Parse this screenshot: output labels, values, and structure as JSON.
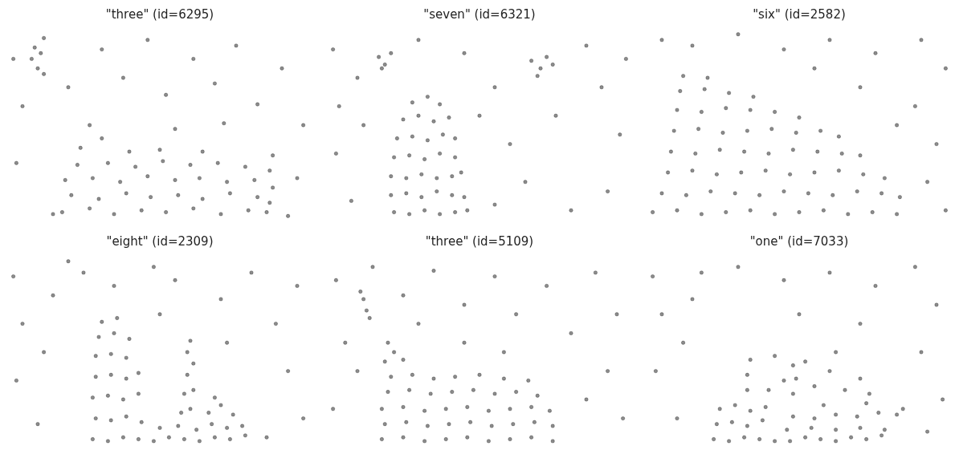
{
  "chart_data": [
    {
      "type": "scatter",
      "title": "\"three\" (id=6295)",
      "xlim": [
        0,
        100
      ],
      "ylim": [
        0,
        100
      ],
      "tick_labels": false,
      "grid": false,
      "color": "#000000",
      "x": [
        2,
        5,
        3,
        12,
        20,
        31,
        38,
        46,
        52,
        61,
        68,
        75,
        82,
        90,
        97,
        95,
        55,
        71,
        15,
        92,
        8,
        10,
        11,
        12,
        9,
        18,
        27,
        35,
        44,
        52,
        61,
        70,
        79,
        85,
        21,
        30,
        39,
        47,
        56,
        64,
        73,
        82,
        19,
        28,
        37,
        46,
        55,
        63,
        72,
        81,
        23,
        33,
        42,
        51,
        60,
        69,
        78,
        24,
        31,
        40,
        27,
        50,
        64,
        86,
        87,
        86,
        87
      ],
      "values": [
        85,
        60,
        30,
        96,
        70,
        90,
        75,
        95,
        66,
        85,
        72,
        92,
        61,
        80,
        50,
        22,
        48,
        51,
        3,
        2,
        85,
        80,
        88,
        77,
        91,
        4,
        6,
        3,
        5,
        4,
        6,
        3,
        5,
        4,
        13,
        11,
        14,
        12,
        13,
        11,
        14,
        12,
        21,
        22,
        20,
        23,
        21,
        22,
        20,
        21,
        29,
        30,
        28,
        31,
        29,
        30,
        28,
        38,
        43,
        36,
        50,
        37,
        36,
        9,
        17,
        26,
        34
      ]
    },
    {
      "type": "scatter",
      "title": "\"seven\" (id=6321)",
      "xlim": [
        0,
        100
      ],
      "ylim": [
        0,
        100
      ],
      "tick_labels": false,
      "grid": false,
      "color": "#000000",
      "x": [
        2,
        4,
        3,
        8,
        12,
        10,
        30,
        45,
        55,
        60,
        65,
        75,
        85,
        90,
        96,
        92,
        80,
        55,
        50,
        98,
        17,
        19,
        21,
        18,
        67,
        70,
        72,
        69,
        74,
        22,
        27,
        32,
        37,
        42,
        46,
        21,
        26,
        31,
        36,
        41,
        45,
        21,
        26,
        31,
        36,
        41,
        44,
        22,
        27,
        32,
        37,
        42,
        23,
        28,
        33,
        38,
        42,
        25,
        30,
        35,
        40,
        28,
        33,
        37
      ],
      "values": [
        90,
        60,
        35,
        10,
        50,
        75,
        95,
        88,
        70,
        40,
        20,
        55,
        92,
        70,
        45,
        15,
        5,
        8,
        55,
        85,
        86,
        82,
        88,
        80,
        84,
        80,
        86,
        76,
        82,
        4,
        3,
        5,
        3,
        4,
        5,
        13,
        14,
        12,
        15,
        13,
        12,
        23,
        22,
        24,
        22,
        23,
        25,
        33,
        34,
        32,
        35,
        33,
        43,
        44,
        42,
        45,
        43,
        53,
        55,
        52,
        54,
        62,
        65,
        61
      ]
    },
    {
      "type": "scatter",
      "title": "\"six\" (id=2582)",
      "xlim": [
        0,
        100
      ],
      "ylim": [
        0,
        100
      ],
      "tick_labels": false,
      "grid": false,
      "color": "#000000",
      "x": [
        5,
        15,
        30,
        45,
        60,
        75,
        90,
        98,
        88,
        95,
        92,
        98,
        70,
        55,
        82,
        2,
        10,
        18,
        26,
        34,
        42,
        50,
        58,
        66,
        74,
        82,
        5,
        13,
        21,
        29,
        37,
        45,
        53,
        61,
        69,
        77,
        83,
        7,
        15,
        23,
        31,
        39,
        47,
        55,
        63,
        71,
        78,
        8,
        16,
        24,
        32,
        40,
        48,
        56,
        64,
        70,
        9,
        17,
        25,
        33,
        41,
        49,
        57,
        63,
        10,
        18,
        26,
        34,
        42,
        50,
        11,
        19,
        27,
        35,
        12,
        20
      ],
      "values": [
        95,
        92,
        98,
        90,
        95,
        88,
        95,
        80,
        60,
        40,
        20,
        5,
        70,
        80,
        50,
        4,
        5,
        3,
        4,
        5,
        3,
        4,
        5,
        3,
        4,
        3,
        14,
        13,
        15,
        14,
        13,
        15,
        14,
        13,
        15,
        14,
        12,
        25,
        26,
        24,
        25,
        26,
        24,
        25,
        26,
        24,
        22,
        36,
        35,
        37,
        36,
        35,
        37,
        36,
        35,
        34,
        47,
        48,
        46,
        47,
        48,
        46,
        47,
        44,
        58,
        57,
        59,
        58,
        57,
        54,
        68,
        69,
        67,
        65,
        76,
        75
      ]
    },
    {
      "type": "scatter",
      "title": "\"eight\" (id=2309)",
      "xlim": [
        0,
        100
      ],
      "ylim": [
        0,
        100
      ],
      "tick_labels": false,
      "grid": false,
      "color": "#000000",
      "x": [
        2,
        5,
        3,
        10,
        15,
        25,
        35,
        48,
        50,
        55,
        70,
        80,
        88,
        95,
        92,
        97,
        85,
        12,
        72,
        20,
        28,
        33,
        38,
        43,
        29,
        34,
        39,
        44,
        28,
        33,
        38,
        43,
        29,
        34,
        39,
        43,
        29,
        34,
        39,
        30,
        35,
        40,
        31,
        36,
        48,
        53,
        58,
        63,
        68,
        73,
        78,
        50,
        56,
        62,
        67,
        72,
        77,
        57,
        60,
        58,
        61,
        59,
        61,
        59,
        60,
        66,
        70,
        74,
        68
      ],
      "values": [
        90,
        65,
        35,
        12,
        80,
        92,
        85,
        95,
        70,
        88,
        78,
        92,
        65,
        85,
        40,
        15,
        5,
        50,
        55,
        98,
        4,
        3,
        5,
        4,
        15,
        14,
        16,
        13,
        26,
        27,
        25,
        28,
        37,
        38,
        36,
        39,
        48,
        49,
        47,
        58,
        60,
        57,
        66,
        68,
        3,
        5,
        4,
        3,
        5,
        4,
        6,
        10,
        11,
        9,
        12,
        10,
        11,
        18,
        20,
        28,
        30,
        38,
        44,
        50,
        56,
        18,
        22,
        17,
        26
      ]
    },
    {
      "type": "scatter",
      "title": "\"three\" (id=5109)",
      "xlim": [
        0,
        100
      ],
      "ylim": [
        0,
        100
      ],
      "tick_labels": false,
      "grid": false,
      "color": "#000000",
      "x": [
        3,
        6,
        2,
        15,
        25,
        35,
        45,
        55,
        62,
        72,
        80,
        88,
        95,
        92,
        97,
        85,
        45,
        58,
        30,
        10,
        12,
        13,
        11,
        14,
        18,
        25,
        32,
        39,
        46,
        53,
        60,
        67,
        74,
        19,
        26,
        33,
        40,
        47,
        54,
        61,
        68,
        74,
        18,
        25,
        32,
        39,
        46,
        53,
        60,
        67,
        73,
        20,
        27,
        34,
        41,
        48,
        55,
        62,
        69,
        21,
        28,
        35,
        42,
        50,
        58,
        66,
        19,
        22,
        25,
        20
      ],
      "values": [
        88,
        55,
        20,
        95,
        80,
        93,
        75,
        90,
        70,
        85,
        60,
        92,
        70,
        40,
        15,
        25,
        55,
        50,
        65,
        40,
        78,
        72,
        82,
        68,
        4,
        5,
        3,
        4,
        5,
        3,
        4,
        5,
        3,
        12,
        13,
        11,
        12,
        13,
        11,
        12,
        13,
        11,
        20,
        21,
        19,
        20,
        21,
        19,
        20,
        21,
        19,
        29,
        30,
        28,
        29,
        30,
        28,
        29,
        27,
        37,
        38,
        36,
        37,
        38,
        36,
        35,
        45,
        50,
        46,
        55
      ]
    },
    {
      "type": "scatter",
      "title": "\"one\" (id=7033)",
      "xlim": [
        0,
        100
      ],
      "ylim": [
        0,
        100
      ],
      "tick_labels": false,
      "grid": false,
      "color": "#000000",
      "x": [
        2,
        5,
        3,
        10,
        18,
        15,
        30,
        45,
        60,
        75,
        88,
        95,
        90,
        97,
        92,
        50,
        12,
        70,
        22,
        27,
        32,
        37,
        42,
        23,
        28,
        33,
        38,
        24,
        29,
        34,
        39,
        47,
        52,
        57,
        62,
        67,
        72,
        77,
        46,
        54,
        62,
        70,
        78,
        48,
        55,
        62,
        69,
        76,
        82,
        58,
        72,
        84,
        33,
        33,
        34,
        48,
        49,
        48,
        40,
        45,
        55,
        60,
        65,
        70,
        52,
        62,
        42,
        73
      ],
      "values": [
        90,
        70,
        40,
        15,
        92,
        78,
        95,
        88,
        92,
        85,
        95,
        75,
        50,
        25,
        8,
        70,
        55,
        65,
        4,
        3,
        5,
        4,
        3,
        12,
        13,
        11,
        14,
        20,
        22,
        19,
        21,
        3,
        5,
        4,
        3,
        5,
        4,
        6,
        9,
        10,
        9,
        10,
        9,
        16,
        15,
        17,
        16,
        18,
        17,
        22,
        23,
        20,
        30,
        38,
        46,
        28,
        36,
        43,
        30,
        35,
        32,
        40,
        30,
        36,
        45,
        50,
        48,
        28
      ]
    }
  ]
}
